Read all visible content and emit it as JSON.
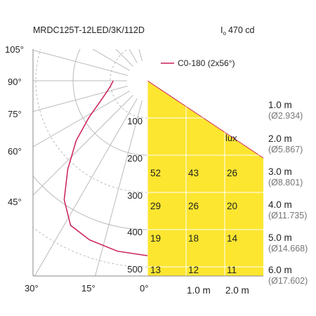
{
  "chart_data": {
    "type": "polar-photometric",
    "title": "MRDC125T-12LED/3K/112D",
    "peak_intensity": {
      "prefix": "I",
      "subscript": "o",
      "value": "470 cd"
    },
    "legend": {
      "label": "C0-180 (2x56°)",
      "color": "#cc1f5a",
      "placement": "top-right"
    },
    "angle_labels": [
      "105°",
      "90°",
      "75°",
      "60°",
      "45°",
      "30°",
      "15°",
      "0°"
    ],
    "radial_scale": {
      "unit": "cd",
      "ticks": [
        100,
        200,
        300,
        400,
        500
      ],
      "max": 500
    },
    "polar_curve": {
      "name": "C0-180 (2x56°)",
      "angles_deg": [
        0,
        10,
        20,
        28,
        35,
        42,
        50,
        58,
        66,
        74,
        82,
        90
      ],
      "intensity_cd": [
        470,
        465,
        455,
        440,
        390,
        320,
        250,
        185,
        140,
        115,
        100,
        92
      ]
    },
    "illuminance_table": {
      "unit_label": "lux",
      "fill_color": "#fce630",
      "x_axis_labels": [
        "1.0 m",
        "2.0 m"
      ],
      "rows": [
        {
          "distance": "1.0 m",
          "diameter": "(Ø2.934)",
          "values": []
        },
        {
          "distance": "2.0 m",
          "diameter": "(Ø5.867)",
          "values": []
        },
        {
          "distance": "3.0 m",
          "diameter": "(Ø8.801)",
          "values": [
            "52",
            "43",
            "26"
          ]
        },
        {
          "distance": "4.0 m",
          "diameter": "(Ø11.735)",
          "values": [
            "29",
            "26",
            "20"
          ]
        },
        {
          "distance": "5.0 m",
          "diameter": "(Ø14.668)",
          "values": [
            "19",
            "18",
            "14"
          ]
        },
        {
          "distance": "6.0 m",
          "diameter": "(Ø17.602)",
          "values": [
            "13",
            "12",
            "11"
          ]
        }
      ]
    },
    "colors": {
      "grid_solid": "#bbbbbb",
      "grid_dashed": "#bbbbbb",
      "axis": "#888888",
      "diameter_text": "#777777",
      "text": "#222222"
    }
  }
}
